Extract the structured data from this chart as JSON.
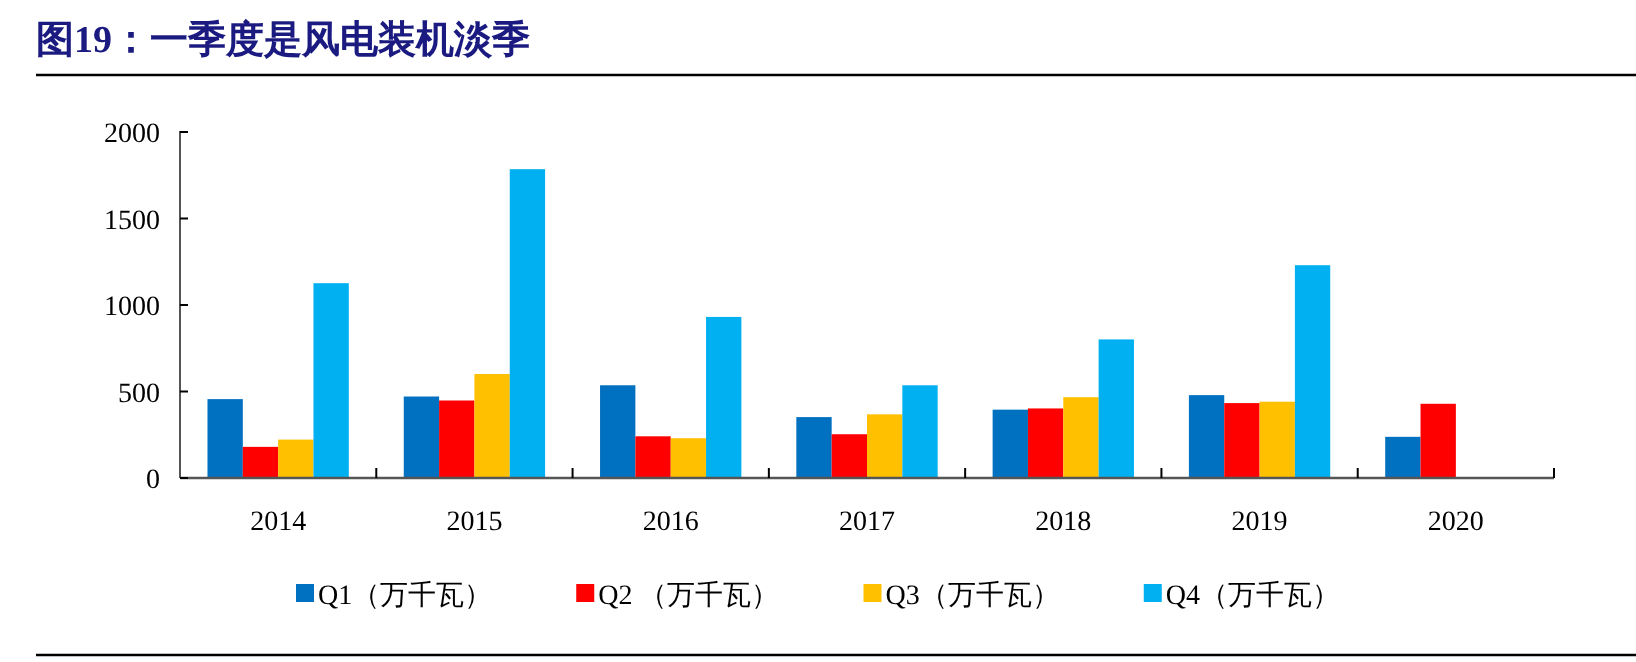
{
  "chart_data": {
    "type": "bar",
    "title": "图19：一季度是风电装机淡季",
    "categories": [
      "2014",
      "2015",
      "2016",
      "2017",
      "2018",
      "2019",
      "2020"
    ],
    "series": [
      {
        "name": "Q1（万千瓦）",
        "color": "#0070c0",
        "values": [
          456,
          471,
          536,
          352,
          395,
          479,
          238
        ]
      },
      {
        "name": "Q2 （万千瓦）",
        "color": "#ff0000",
        "values": [
          180,
          448,
          241,
          253,
          402,
          433,
          429
        ]
      },
      {
        "name": "Q3（万千瓦）",
        "color": "#ffc000",
        "values": [
          222,
          601,
          230,
          368,
          467,
          441,
          null
        ]
      },
      {
        "name": "Q4（万千瓦）",
        "color": "#00b0f0",
        "values": [
          1126,
          1785,
          931,
          536,
          801,
          1230,
          null
        ]
      }
    ],
    "ylim": [
      0,
      2000
    ],
    "yticks": [
      0,
      500,
      1000,
      1500,
      2000
    ],
    "grid": false,
    "legend": "bottom"
  }
}
